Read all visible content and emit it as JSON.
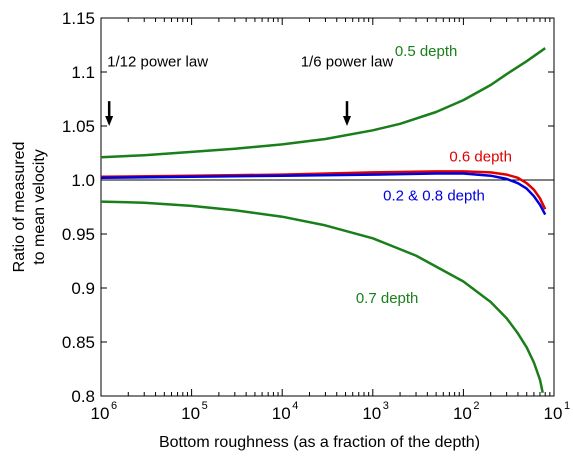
{
  "chart_data": {
    "type": "line",
    "title": "",
    "xlabel": "Bottom roughness (as a fraction of the depth)",
    "ylabel_lines": [
      "Ratio of measured",
      "to mean velocity"
    ],
    "x_scale": "log",
    "xlim": [
      1e-06,
      0.1
    ],
    "ylim": [
      0.8,
      1.15
    ],
    "x_ticks": [
      {
        "base": "10",
        "exp": "6",
        "value": 1e-06
      },
      {
        "base": "10",
        "exp": "5",
        "value": 1e-05
      },
      {
        "base": "10",
        "exp": "4",
        "value": 0.0001
      },
      {
        "base": "10",
        "exp": "3",
        "value": 0.001
      },
      {
        "base": "10",
        "exp": "2",
        "value": 0.01
      },
      {
        "base": "10",
        "exp": "1",
        "value": 0.1
      }
    ],
    "y_ticks": [
      {
        "label": "0.8",
        "value": 0.8
      },
      {
        "label": "0.85",
        "value": 0.85
      },
      {
        "label": "0.9",
        "value": 0.9
      },
      {
        "label": "0.95",
        "value": 0.95
      },
      {
        "label": "1.0",
        "value": 1.0
      },
      {
        "label": "1.05",
        "value": 1.05
      },
      {
        "label": "1.1",
        "value": 1.1
      },
      {
        "label": "1.15",
        "value": 1.15
      }
    ],
    "reference_line": {
      "y": 1.0,
      "color": "#000000"
    },
    "series": [
      {
        "name": "0.5 depth",
        "color": "#1a7f1a",
        "x": [
          1e-06,
          3e-06,
          1e-05,
          3e-05,
          0.0001,
          0.0003,
          0.001,
          0.002,
          0.005,
          0.01,
          0.02,
          0.03,
          0.05,
          0.08
        ],
        "y": [
          1.021,
          1.023,
          1.026,
          1.029,
          1.033,
          1.038,
          1.046,
          1.052,
          1.063,
          1.074,
          1.088,
          1.098,
          1.11,
          1.122
        ]
      },
      {
        "name": "0.6 depth",
        "color": "#e00000",
        "x": [
          1e-06,
          1e-05,
          0.0001,
          0.001,
          0.005,
          0.01,
          0.02,
          0.03,
          0.04,
          0.05,
          0.06,
          0.07,
          0.08
        ],
        "y": [
          1.003,
          1.004,
          1.005,
          1.007,
          1.008,
          1.008,
          1.007,
          1.005,
          1.002,
          0.997,
          0.991,
          0.983,
          0.973
        ]
      },
      {
        "name": "0.2 & 0.8 depth",
        "color": "#0000dd",
        "x": [
          1e-06,
          1e-05,
          0.0001,
          0.001,
          0.005,
          0.01,
          0.02,
          0.03,
          0.04,
          0.05,
          0.06,
          0.07,
          0.08
        ],
        "y": [
          1.002,
          1.003,
          1.004,
          1.005,
          1.006,
          1.006,
          1.004,
          1.001,
          0.997,
          0.992,
          0.985,
          0.977,
          0.968
        ]
      },
      {
        "name": "0.7 depth",
        "color": "#1a7f1a",
        "x": [
          1e-06,
          3e-06,
          1e-05,
          3e-05,
          0.0001,
          0.0003,
          0.001,
          0.003,
          0.01,
          0.02,
          0.03,
          0.04,
          0.05,
          0.06,
          0.07,
          0.075
        ],
        "y": [
          0.98,
          0.979,
          0.976,
          0.972,
          0.966,
          0.958,
          0.946,
          0.93,
          0.906,
          0.887,
          0.872,
          0.858,
          0.845,
          0.831,
          0.815,
          0.803
        ]
      }
    ],
    "series_labels": [
      {
        "text": "0.5 depth",
        "x": 0.00175,
        "y": 1.115,
        "color": "#1a7f1a"
      },
      {
        "text": "0.6 depth",
        "x": 0.007,
        "y": 1.017,
        "color": "#e00000"
      },
      {
        "text": "0.2 & 0.8 depth",
        "x": 0.0013,
        "y": 0.981,
        "color": "#0000dd"
      },
      {
        "text": "0.7 depth",
        "x": 0.00065,
        "y": 0.886,
        "color": "#1a7f1a"
      }
    ],
    "annotations": [
      {
        "text": "1/12 power law",
        "x": 1.17e-06,
        "y": 1.105,
        "arrow_y_top": 1.073,
        "arrow_y_bottom": 1.05
      },
      {
        "text": "1/6 power law",
        "x": 0.000519,
        "y": 1.105,
        "arrow_y_top": 1.073,
        "arrow_y_bottom": 1.05
      }
    ]
  }
}
